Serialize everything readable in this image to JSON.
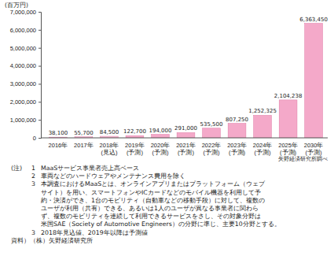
{
  "chart_data": {
    "type": "bar",
    "unit": "(百万円)",
    "categories": [
      "2016年",
      "2017年",
      "2018年(見込)",
      "2019年(予測)",
      "2020年(予測)",
      "2021年(予測)",
      "2022年(予測)",
      "2023年(予測)",
      "2024年(予測)",
      "2025年(予測)",
      "2030年(予測)"
    ],
    "values": [
      38100,
      55700,
      84500,
      122700,
      194000,
      291000,
      535500,
      807250,
      1252325,
      2104238,
      6363450
    ],
    "value_labels": [
      "38,100",
      "55,700",
      "84,500",
      "122,700",
      "194,000",
      "291,000",
      "535,500",
      "807,250",
      "1,252,325",
      "2,104,238",
      "6,363,450"
    ],
    "data_labels": true,
    "colors": [
      "#f6c2d8",
      "#f6c2d8",
      "#f6c2d8",
      "#f4a9c9",
      "#f4a9c9",
      "#f4a9c9",
      "#f4a9c9",
      "#f4a9c9",
      "#f4a9c9",
      "#f4a9c9",
      "#f4a9c9"
    ],
    "ylim": [
      0,
      7000000
    ],
    "yticks": [
      0,
      {
        "value": 1000000,
        "label": "1,000,000"
      },
      {
        "value": 2000000,
        "label": "2,000,000"
      },
      {
        "value": 3000000,
        "label": "3,000,000"
      },
      {
        "value": 4000000,
        "label": "4,000,000"
      },
      {
        "value": 5000000,
        "label": "5,000,000"
      },
      {
        "value": 6000000,
        "label": "6,000,000"
      },
      {
        "value": 7000000,
        "label": "7,000,000"
      }
    ],
    "grid": false,
    "source_note": "矢野経済研究所調べ",
    "note_label": "(注)",
    "notes": [
      {
        "number": "1",
        "lines": [
          "MaaSサービス事業者売上高ベース"
        ]
      },
      {
        "number": "2",
        "lines": [
          "車両などのハードウェアやメンテナンス費用を除く"
        ]
      },
      {
        "number": "3",
        "lines": [
          "本調査におけるMaaSとは、オンラインアプリまたはプラットフォーム（ウェブ",
          "サイト）を用い、スマートフォンやICカードなどのモバイル機器を利用して予",
          "約・決済ができ、1台のモビリティ（自動車などの移動手段）に対して、複数の",
          "ユーザが利用（共有）できる、あるいは1人のユーザが異なる事業者に関わら",
          "ず、複数のモビリティを連続して利用できるサービスをさし、その対象分野は",
          "米国SAE（Society of Automotive Engineers）の分野に準じ、主要10分野とする。"
        ]
      },
      {
        "number": "3",
        "lines": [
          "2018年見込値、2019年以降は予測値"
        ]
      }
    ],
    "source": "資料）（株）矢野経済研究所"
  }
}
